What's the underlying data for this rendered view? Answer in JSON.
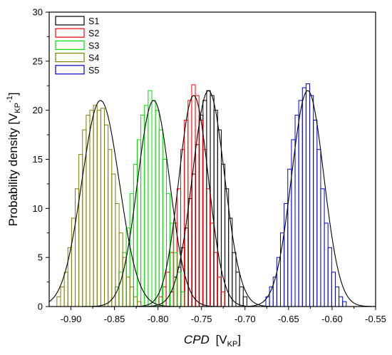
{
  "chart_data": {
    "type": "bar",
    "subtype": "histogram-with-gaussian-fits",
    "xlabel": "CPD",
    "xlabel_unit": "V",
    "xlabel_unit_sub": "KP",
    "ylabel": "Probability density [V",
    "ylabel_unit_sub": "KP",
    "ylabel_sup": "-1",
    "ylabel_close": "]",
    "xlim": [
      -0.925,
      -0.55
    ],
    "ylim": [
      0,
      30
    ],
    "xticks": [
      -0.9,
      -0.85,
      -0.8,
      -0.75,
      -0.7,
      -0.65,
      -0.6,
      -0.55
    ],
    "xtick_labels": [
      "-0.90",
      "-0.85",
      "-0.80",
      "-0.75",
      "-0.70",
      "-0.65",
      "-0.60",
      "-0.55"
    ],
    "yticks": [
      0,
      5,
      10,
      15,
      20,
      25,
      30
    ],
    "ytick_labels": [
      "0",
      "5",
      "10",
      "15",
      "20",
      "25",
      "30"
    ],
    "bin_width": 0.0042,
    "legend_position": "top-left",
    "fit_color": "#000000",
    "series": [
      {
        "name": "S1",
        "color": "#000000",
        "fit": {
          "mean": -0.742,
          "sigma": 0.0185,
          "peak": 22.0
        },
        "bins_x": [
          -0.784,
          -0.7798,
          -0.7756,
          -0.7714,
          -0.7672,
          -0.763,
          -0.7588,
          -0.7546,
          -0.7504,
          -0.7462,
          -0.742,
          -0.7378,
          -0.7336,
          -0.7294,
          -0.7252,
          -0.721,
          -0.7168,
          -0.7126,
          -0.7084,
          -0.7042,
          -0.7
        ],
        "bins_y": [
          1.5,
          3.0,
          4.0,
          6.0,
          8.0,
          11.0,
          13.5,
          16.5,
          19.5,
          21.0,
          22.0,
          21.5,
          20.0,
          18.0,
          14.5,
          12.0,
          9.0,
          5.5,
          3.5,
          2.0,
          1.0
        ]
      },
      {
        "name": "S2",
        "color": "#ff0000",
        "fit": {
          "mean": -0.759,
          "sigma": 0.017,
          "peak": 21.5
        },
        "bins_x": [
          -0.797,
          -0.7928,
          -0.7886,
          -0.7844,
          -0.7802,
          -0.776,
          -0.7718,
          -0.7676,
          -0.7634,
          -0.7592,
          -0.755,
          -0.7508,
          -0.7466,
          -0.7424,
          -0.7382,
          -0.734,
          -0.7298,
          -0.7256
        ],
        "bins_y": [
          1.0,
          2.0,
          3.5,
          5.5,
          8.5,
          12.0,
          16.0,
          19.0,
          21.0,
          22.6,
          21.5,
          19.0,
          16.0,
          12.0,
          8.5,
          5.5,
          3.0,
          1.5
        ]
      },
      {
        "name": "S3",
        "color": "#00dd00",
        "fit": {
          "mean": -0.805,
          "sigma": 0.0185,
          "peak": 21.0
        },
        "bins_x": [
          -0.847,
          -0.8428,
          -0.8386,
          -0.8344,
          -0.8302,
          -0.826,
          -0.8218,
          -0.8176,
          -0.8134,
          -0.8092,
          -0.805,
          -0.8008,
          -0.7966,
          -0.7924,
          -0.7882,
          -0.784,
          -0.7798,
          -0.7756,
          -0.7714
        ],
        "bins_y": [
          2.0,
          3.5,
          5.5,
          8.0,
          11.5,
          14.5,
          17.0,
          19.5,
          20.5,
          22.0,
          21.0,
          20.0,
          18.0,
          15.0,
          11.5,
          8.5,
          5.5,
          3.5,
          1.5
        ]
      },
      {
        "name": "S4",
        "color": "#7f7f00",
        "fit": {
          "mean": -0.866,
          "sigma": 0.0215,
          "peak": 21.0
        },
        "bins_x": [
          -0.914,
          -0.9098,
          -0.9056,
          -0.9014,
          -0.8972,
          -0.893,
          -0.8888,
          -0.8846,
          -0.8804,
          -0.8762,
          -0.872,
          -0.8678,
          -0.8636,
          -0.8594,
          -0.8552,
          -0.851,
          -0.8468,
          -0.8426,
          -0.8384,
          -0.8342,
          -0.83,
          -0.8258,
          -0.8216
        ],
        "bins_y": [
          1.0,
          2.0,
          3.5,
          6.0,
          9.0,
          12.0,
          15.5,
          18.0,
          19.5,
          20.0,
          20.5,
          20.0,
          20.2,
          18.5,
          16.0,
          13.5,
          10.5,
          7.5,
          5.0,
          3.0,
          2.0,
          1.0,
          0.5
        ]
      },
      {
        "name": "S5",
        "color": "#0000dd",
        "fit": {
          "mean": -0.628,
          "sigma": 0.0185,
          "peak": 22.0
        },
        "bins_x": [
          -0.674,
          -0.6698,
          -0.6656,
          -0.6614,
          -0.6572,
          -0.653,
          -0.6488,
          -0.6446,
          -0.6404,
          -0.6362,
          -0.632,
          -0.6278,
          -0.6236,
          -0.6194,
          -0.6152,
          -0.611,
          -0.6068,
          -0.6026,
          -0.5984,
          -0.5942,
          -0.59,
          -0.5858
        ],
        "bins_y": [
          1.0,
          2.0,
          3.0,
          5.0,
          7.5,
          10.5,
          14.0,
          17.0,
          19.5,
          21.0,
          22.3,
          22.7,
          21.5,
          19.0,
          16.0,
          12.0,
          8.5,
          6.0,
          3.5,
          2.0,
          1.0,
          0.5
        ]
      }
    ]
  }
}
